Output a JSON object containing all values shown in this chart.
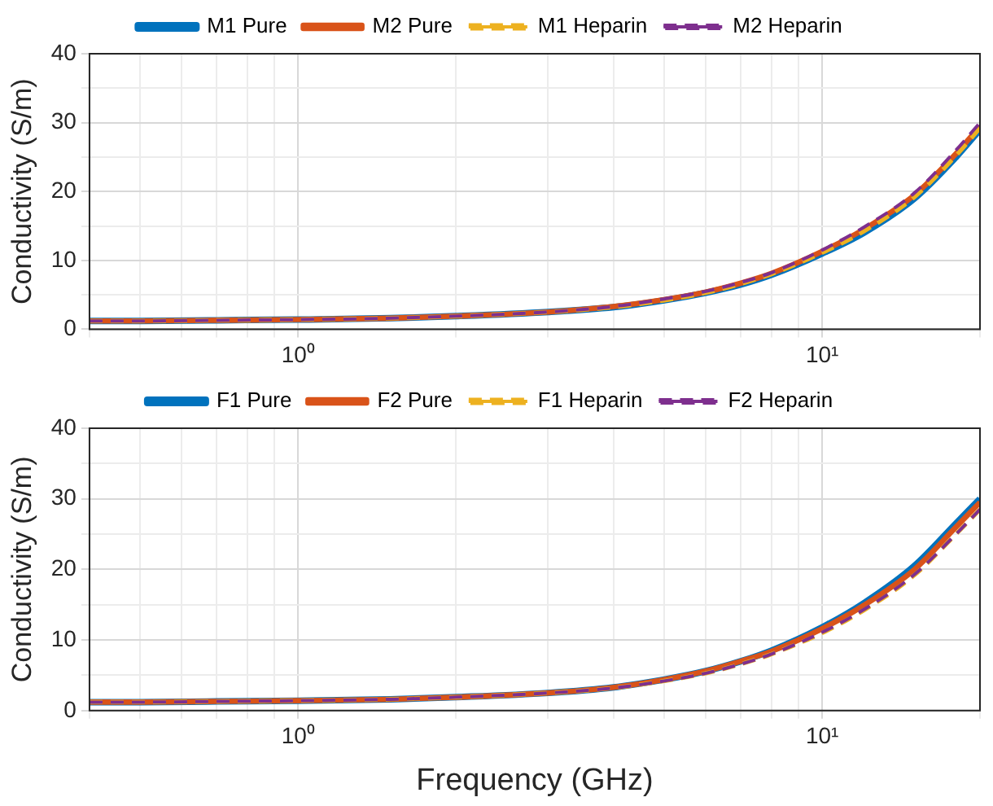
{
  "chart_data": [
    {
      "type": "line",
      "ylabel": "Conductivity (S/m)",
      "log": "x",
      "xlim": [
        0.4,
        20
      ],
      "xticks": [
        {
          "value": 0.4,
          "label": null
        },
        {
          "value": 0.5,
          "label": null
        },
        {
          "value": 0.6,
          "label": null
        },
        {
          "value": 0.7,
          "label": null
        },
        {
          "value": 0.8,
          "label": null
        },
        {
          "value": 0.9,
          "label": null
        },
        {
          "value": 1,
          "label": "10⁰"
        },
        {
          "value": 2,
          "label": null
        },
        {
          "value": 3,
          "label": null
        },
        {
          "value": 4,
          "label": null
        },
        {
          "value": 5,
          "label": null
        },
        {
          "value": 6,
          "label": null
        },
        {
          "value": 7,
          "label": null
        },
        {
          "value": 8,
          "label": null
        },
        {
          "value": 9,
          "label": null
        },
        {
          "value": 10,
          "label": "10¹"
        },
        {
          "value": 20,
          "label": null
        }
      ],
      "ylim": [
        0,
        40
      ],
      "yticks": [
        0,
        {
          "value": 5,
          "label": null
        },
        10,
        {
          "value": 15,
          "label": null
        },
        20,
        {
          "value": 25,
          "label": null
        },
        30,
        {
          "value": 35,
          "label": null
        },
        40
      ],
      "grid": true,
      "legend": "top",
      "x": [
        0.4,
        0.5,
        0.7,
        1,
        1.5,
        2,
        3,
        4,
        5,
        6,
        7,
        8,
        10,
        12,
        15,
        18,
        20
      ],
      "series": [
        {
          "name": "M1 Pure",
          "color": "#0072bd",
          "line_style": "solid",
          "values": [
            1.2,
            1.2,
            1.3,
            1.4,
            1.6,
            1.9,
            2.5,
            3.2,
            4.2,
            5.3,
            6.5,
            7.9,
            11,
            14,
            19,
            25,
            29
          ]
        },
        {
          "name": "M2 Pure",
          "color": "#d95319",
          "line_style": "solid",
          "values": [
            1.2,
            1.2,
            1.3,
            1.4,
            1.6,
            1.9,
            2.5,
            3.3,
            4.3,
            5.4,
            6.7,
            8.1,
            11.3,
            14.5,
            19.5,
            25.5,
            29.5
          ]
        },
        {
          "name": "M1 Heparin",
          "color": "#edb120",
          "line_style": "dashed",
          "values": [
            1.2,
            1.2,
            1.3,
            1.4,
            1.6,
            1.9,
            2.5,
            3.2,
            4.2,
            5.3,
            6.6,
            8,
            11.1,
            14.2,
            19.2,
            25.2,
            29.2
          ]
        },
        {
          "name": "M2 Heparin",
          "color": "#7e2f8e",
          "line_style": "dashed",
          "values": [
            1.2,
            1.2,
            1.3,
            1.4,
            1.6,
            1.9,
            2.5,
            3.3,
            4.4,
            5.5,
            6.8,
            8.2,
            11.5,
            14.8,
            19.8,
            26,
            30
          ]
        }
      ]
    },
    {
      "type": "line",
      "ylabel": "Conductivity (S/m)",
      "xlabel": "Frequency (GHz)",
      "log": "x",
      "xlim": [
        0.4,
        20
      ],
      "xticks": [
        {
          "value": 0.4,
          "label": null
        },
        {
          "value": 0.5,
          "label": null
        },
        {
          "value": 0.6,
          "label": null
        },
        {
          "value": 0.7,
          "label": null
        },
        {
          "value": 0.8,
          "label": null
        },
        {
          "value": 0.9,
          "label": null
        },
        {
          "value": 1,
          "label": "10⁰"
        },
        {
          "value": 2,
          "label": null
        },
        {
          "value": 3,
          "label": null
        },
        {
          "value": 4,
          "label": null
        },
        {
          "value": 5,
          "label": null
        },
        {
          "value": 6,
          "label": null
        },
        {
          "value": 7,
          "label": null
        },
        {
          "value": 8,
          "label": null
        },
        {
          "value": 9,
          "label": null
        },
        {
          "value": 10,
          "label": "10¹"
        },
        {
          "value": 20,
          "label": null
        }
      ],
      "ylim": [
        0,
        40
      ],
      "yticks": [
        0,
        {
          "value": 5,
          "label": null
        },
        10,
        {
          "value": 15,
          "label": null
        },
        20,
        {
          "value": 25,
          "label": null
        },
        30,
        {
          "value": 35,
          "label": null
        },
        40
      ],
      "grid": true,
      "legend": "top",
      "x": [
        0.4,
        0.5,
        0.7,
        1,
        1.5,
        2,
        3,
        4,
        5,
        6,
        7,
        8,
        10,
        12,
        15,
        18,
        20
      ],
      "series": [
        {
          "name": "F1 Pure",
          "color": "#0072bd",
          "line_style": "solid",
          "values": [
            1.2,
            1.2,
            1.3,
            1.4,
            1.6,
            1.9,
            2.5,
            3.3,
            4.4,
            5.6,
            7,
            8.5,
            11.8,
            15.2,
            20.5,
            26.5,
            30
          ]
        },
        {
          "name": "F2 Pure",
          "color": "#d95319",
          "line_style": "solid",
          "values": [
            1.2,
            1.2,
            1.3,
            1.4,
            1.6,
            1.9,
            2.5,
            3.3,
            4.4,
            5.6,
            7,
            8.4,
            11.6,
            14.9,
            20,
            26,
            29.5
          ]
        },
        {
          "name": "F1 Heparin",
          "color": "#edb120",
          "line_style": "dashed",
          "values": [
            1.2,
            1.2,
            1.3,
            1.4,
            1.6,
            1.9,
            2.5,
            3.2,
            4.2,
            5.3,
            6.6,
            8,
            11,
            14.2,
            19.2,
            25,
            28.5
          ]
        },
        {
          "name": "F2 Heparin",
          "color": "#7e2f8e",
          "line_style": "dashed",
          "values": [
            1.2,
            1.2,
            1.3,
            1.4,
            1.6,
            1.9,
            2.5,
            3.2,
            4.2,
            5.3,
            6.6,
            8,
            11.1,
            14.3,
            19.3,
            25,
            28.5
          ]
        }
      ]
    }
  ]
}
